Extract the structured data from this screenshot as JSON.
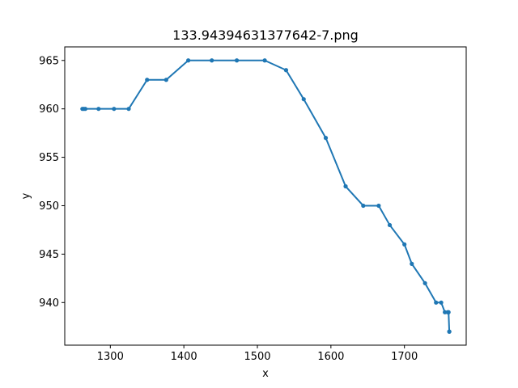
{
  "chart_data": {
    "type": "line",
    "title": "133.94394631377642-7.png",
    "xlabel": "x",
    "ylabel": "y",
    "xlim": [
      1238,
      1784
    ],
    "ylim": [
      935.6,
      966.4
    ],
    "xticks": [
      1300,
      1400,
      1500,
      1600,
      1700
    ],
    "yticks": [
      940,
      945,
      950,
      955,
      960,
      965
    ],
    "grid": false,
    "series": [
      {
        "color": "#1f77b4",
        "x": [
          1262,
          1264,
          1266,
          1284,
          1305,
          1325,
          1350,
          1376,
          1406,
          1438,
          1472,
          1510,
          1539,
          1563,
          1593,
          1620,
          1644,
          1665,
          1680,
          1700,
          1710,
          1728,
          1743,
          1750,
          1755,
          1759,
          1760,
          1761,
          1761
        ],
        "y": [
          960,
          960,
          960,
          960,
          960,
          960,
          963,
          963,
          965,
          965,
          965,
          965,
          964,
          961,
          957,
          952,
          950,
          950,
          948,
          946,
          944,
          942,
          940,
          940,
          939,
          939,
          939,
          937,
          937
        ]
      }
    ]
  }
}
